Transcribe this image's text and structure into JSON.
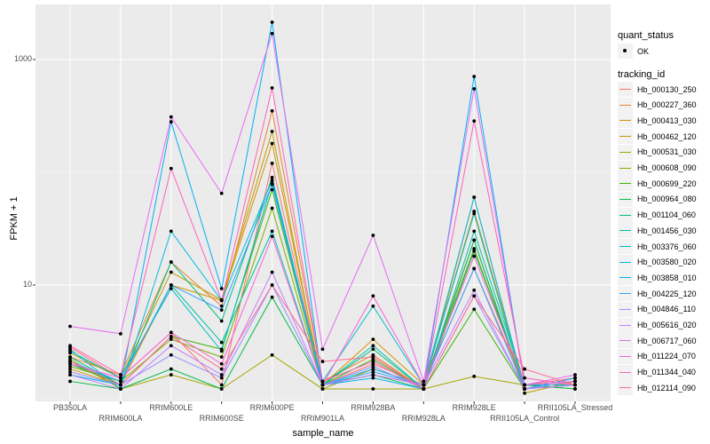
{
  "chart_data": {
    "type": "line",
    "xlabel": "sample_name",
    "ylabel": "FPKM + 1",
    "y_scale": "log10",
    "ylim": [
      0.93,
      3100
    ],
    "y_ticks": [
      10,
      1000
    ],
    "y_tick_labels": [
      "10",
      "1000"
    ],
    "grid": true,
    "legend_position": "right",
    "categories": [
      "PB350LA",
      "RRIM600LA",
      "RRIM600LE",
      "RRIM600SE",
      "RRIM600PE",
      "RRIM901LA",
      "RRIM928BA",
      "RRIM928LA",
      "RRIM928LE",
      "RRII105LA_Control",
      "RRII105LA_Stressed"
    ],
    "shape_legend": {
      "title": "quant_status",
      "items": [
        "OK"
      ]
    },
    "color_legend_title": "tracking_id",
    "series": [
      {
        "name": "Hb_000130_250",
        "color": "#F8766D",
        "values": [
          2.8,
          1.5,
          3.8,
          1.3,
          120,
          1.3,
          2.0,
          1.3,
          14,
          1.3,
          1.5
        ]
      },
      {
        "name": "Hb_000227_360",
        "color": "#EA8331",
        "values": [
          2.3,
          1.6,
          16,
          6.5,
          350,
          1.4,
          2.4,
          1.2,
          60,
          1.2,
          1.4
        ]
      },
      {
        "name": "Hb_000413_030",
        "color": "#D89000",
        "values": [
          1.8,
          1.3,
          10,
          7.3,
          180,
          1.3,
          3.3,
          1.3,
          45,
          1.3,
          1.3
        ]
      },
      {
        "name": "Hb_000462_120",
        "color": "#C09B00",
        "values": [
          2.5,
          1.5,
          13,
          7.4,
          230,
          1.2,
          1.8,
          1.3,
          25,
          1.1,
          1.4
        ]
      },
      {
        "name": "Hb_000531_030",
        "color": "#A3A500",
        "values": [
          2.2,
          1.2,
          1.6,
          1.2,
          2.4,
          1.2,
          1.2,
          1.2,
          1.55,
          1.3,
          1.2
        ]
      },
      {
        "name": "Hb_000608_090",
        "color": "#7CAE00",
        "values": [
          1.9,
          1.4,
          3.3,
          2.3,
          48,
          1.3,
          1.6,
          1.3,
          21,
          1.2,
          1.5
        ]
      },
      {
        "name": "Hb_000699_220",
        "color": "#39B600",
        "values": [
          2.0,
          1.3,
          3.5,
          2.7,
          70,
          1.3,
          2.2,
          1.2,
          6.1,
          1.2,
          1.3
        ]
      },
      {
        "name": "Hb_000964_080",
        "color": "#00BB4E",
        "values": [
          1.4,
          1.2,
          1.8,
          1.2,
          7.8,
          1.3,
          1.6,
          1.2,
          20,
          1.3,
          1.2
        ]
      },
      {
        "name": "Hb_001104_060",
        "color": "#00BF7D",
        "values": [
          2.3,
          1.3,
          16,
          4.8,
          90,
          1.3,
          2.7,
          1.2,
          25,
          1.2,
          1.4
        ]
      },
      {
        "name": "Hb_001456_030",
        "color": "#00C1A3",
        "values": [
          2.0,
          1.4,
          10,
          3.1,
          30,
          1.3,
          2.9,
          1.2,
          30,
          1.3,
          1.3
        ]
      },
      {
        "name": "Hb_003376_060",
        "color": "#00BFC4",
        "values": [
          2.6,
          1.5,
          9.3,
          2.6,
          80,
          1.4,
          6.5,
          1.3,
          43,
          1.2,
          1.5
        ]
      },
      {
        "name": "Hb_003580_020",
        "color": "#00BAE0",
        "values": [
          2.7,
          1.2,
          30,
          7.3,
          85,
          1.3,
          1.8,
          1.3,
          60,
          1.2,
          1.3
        ]
      },
      {
        "name": "Hb_003858_010",
        "color": "#00B0F6",
        "values": [
          1.6,
          1.3,
          280,
          9.3,
          2140,
          1.3,
          1.5,
          1.2,
          707,
          1.3,
          1.4
        ]
      },
      {
        "name": "Hb_004225_120",
        "color": "#35A2FF",
        "values": [
          2.1,
          1.4,
          10,
          6.0,
          78,
          1.3,
          1.7,
          1.3,
          14,
          1.2,
          1.5
        ]
      },
      {
        "name": "Hb_004846_110",
        "color": "#9590FF",
        "values": [
          1.7,
          1.3,
          2.4,
          1.5,
          10,
          1.3,
          1.9,
          1.2,
          8,
          1.2,
          1.4
        ]
      },
      {
        "name": "Hb_005616_020",
        "color": "#C77CFF",
        "values": [
          1.6,
          1.2,
          2.9,
          1.6,
          13,
          1.3,
          1.6,
          1.3,
          9,
          1.2,
          1.3
        ]
      },
      {
        "name": "Hb_006717_060",
        "color": "#E76BF3",
        "values": [
          4.3,
          3.7,
          310,
          65,
          1700,
          2.7,
          27.6,
          1.4,
          550,
          1.3,
          1.6
        ]
      },
      {
        "name": "Hb_011224_070",
        "color": "#FA62DB",
        "values": [
          2.0,
          1.5,
          3.8,
          2.0,
          27,
          1.3,
          8,
          1.3,
          18,
          1.3,
          1.4
        ]
      },
      {
        "name": "Hb_011344_040",
        "color": "#FF62BC",
        "values": [
          2.9,
          1.6,
          108,
          7.3,
          560,
          1.4,
          2.1,
          1.2,
          285,
          1.5,
          1.3
        ]
      },
      {
        "name": "Hb_012114_090",
        "color": "#FF6C91",
        "values": [
          2.1,
          1.3,
          3.5,
          1.8,
          10,
          2.1,
          2.3,
          1.2,
          8,
          1.8,
          1.3
        ]
      }
    ]
  }
}
